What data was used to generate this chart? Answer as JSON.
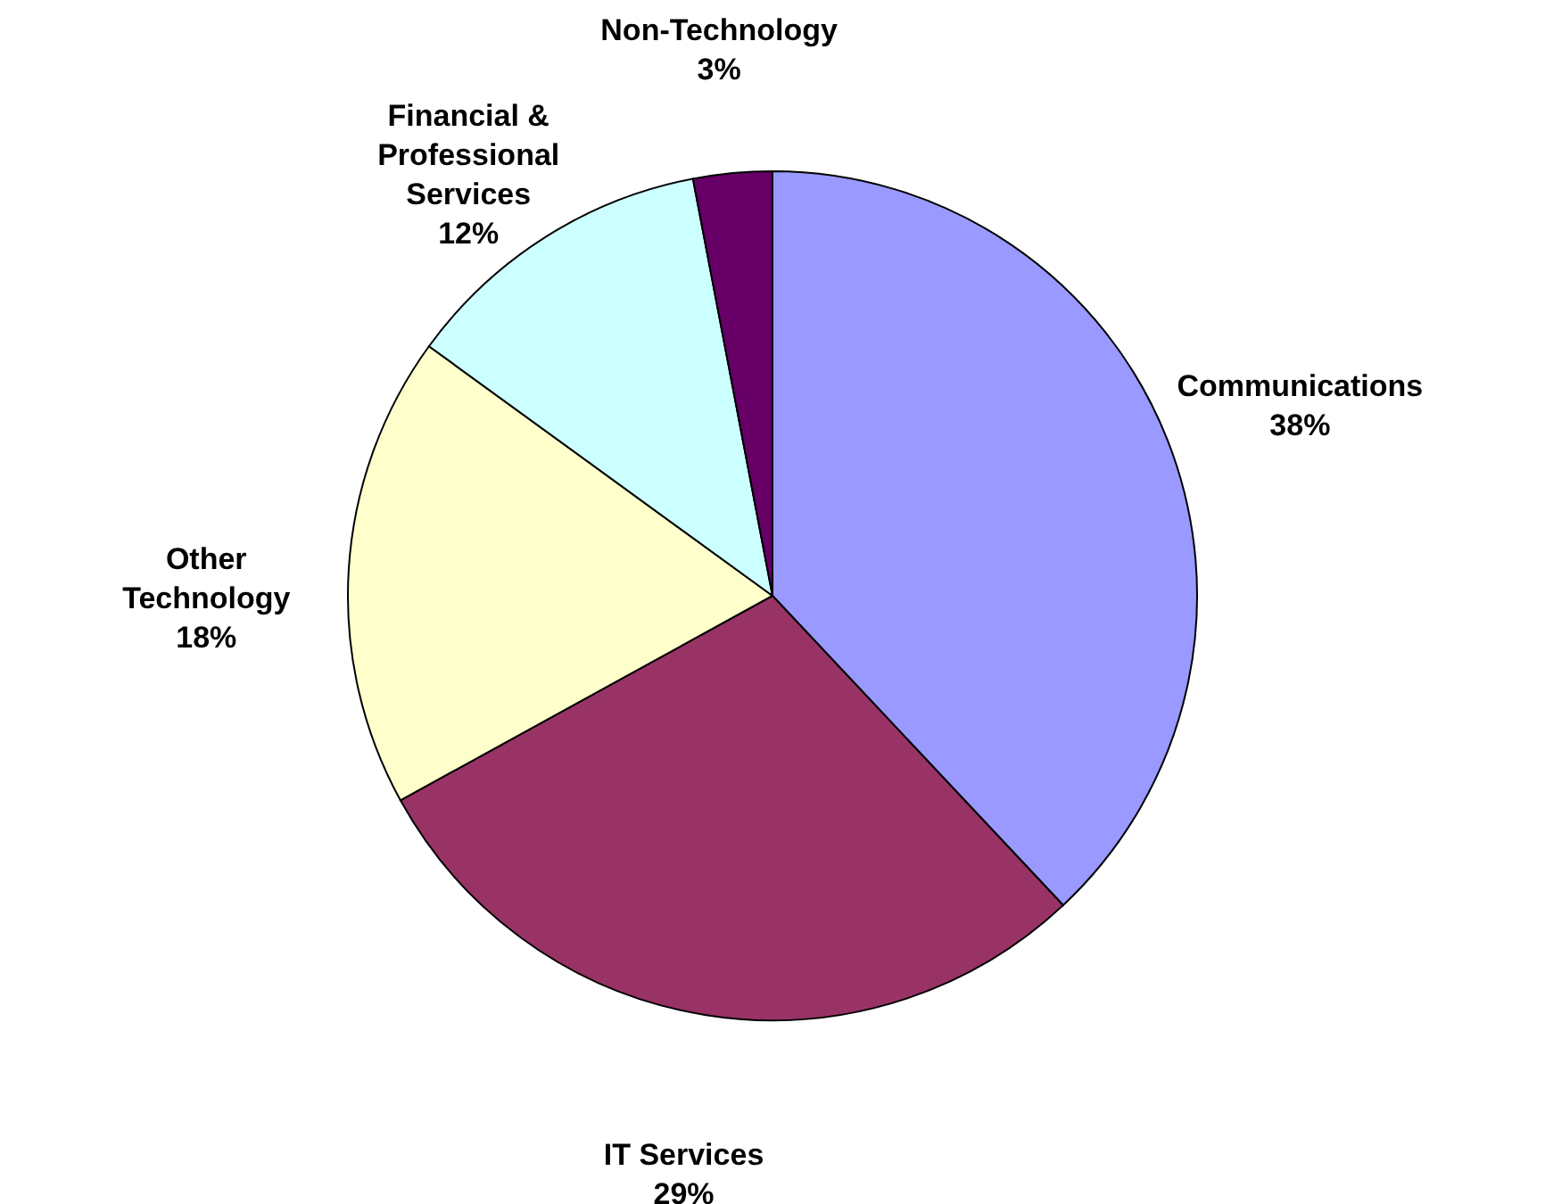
{
  "chart_data": {
    "type": "pie",
    "categories": [
      "Communications",
      "IT Services",
      "Other Technology",
      "Financial & Professional Services",
      "Non-Technology"
    ],
    "values": [
      38,
      29,
      18,
      12,
      3
    ],
    "colors": [
      "#9999ff",
      "#993366",
      "#ffffcc",
      "#ccffff",
      "#660066"
    ],
    "value_labels": [
      "38%",
      "29%",
      "18%",
      "12%",
      "3%"
    ],
    "legend": false
  }
}
